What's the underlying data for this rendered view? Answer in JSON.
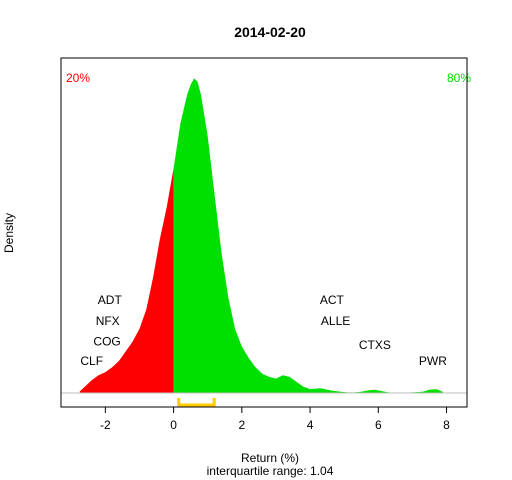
{
  "chart_data": {
    "type": "area",
    "title": "2014-02-20",
    "xlabel": "Return (%)",
    "ylabel": "Density",
    "subtitle": "interquartile range: 1.04",
    "xlim": [
      -3.3,
      8.6
    ],
    "ylim": [
      0,
      1.0
    ],
    "x_ticks": [
      -2,
      0,
      2,
      4,
      6,
      8
    ],
    "split_x": 0,
    "colors": {
      "below": "#ff0000",
      "above": "#00e000",
      "iqr": "#ffcc00",
      "baseline": "#bebebe"
    },
    "iqr": [
      0.15,
      1.19
    ],
    "left_percent": "20%",
    "right_percent": "80%",
    "density": {
      "x": [
        -2.75,
        -2.6,
        -2.4,
        -2.2,
        -2.0,
        -1.8,
        -1.6,
        -1.4,
        -1.2,
        -1.0,
        -0.8,
        -0.6,
        -0.4,
        -0.2,
        0.0,
        0.2,
        0.4,
        0.5,
        0.6,
        0.7,
        0.8,
        1.0,
        1.2,
        1.4,
        1.6,
        1.8,
        2.0,
        2.2,
        2.4,
        2.6,
        2.8,
        3.0,
        3.2,
        3.4,
        3.6,
        3.8,
        4.0,
        4.3,
        4.6,
        4.9,
        5.1,
        5.3,
        5.5,
        5.7,
        5.9,
        6.1,
        6.3,
        6.6,
        7.0,
        7.3,
        7.5,
        7.7,
        7.9
      ],
      "y": [
        0.005,
        0.02,
        0.04,
        0.055,
        0.065,
        0.08,
        0.1,
        0.13,
        0.16,
        0.2,
        0.26,
        0.36,
        0.48,
        0.58,
        0.7,
        0.84,
        0.93,
        0.96,
        0.98,
        0.97,
        0.93,
        0.8,
        0.62,
        0.44,
        0.3,
        0.2,
        0.145,
        0.11,
        0.08,
        0.06,
        0.05,
        0.045,
        0.055,
        0.05,
        0.035,
        0.02,
        0.012,
        0.015,
        0.008,
        0.004,
        0.002,
        0.002,
        0.004,
        0.008,
        0.01,
        0.006,
        0.002,
        0.001,
        0.002,
        0.004,
        0.01,
        0.012,
        0.003
      ]
    },
    "annotations": [
      {
        "label": "ADT",
        "x": -1.87,
        "y": 0.29
      },
      {
        "label": "NFX",
        "x": -1.93,
        "y": 0.225
      },
      {
        "label": "COG",
        "x": -1.95,
        "y": 0.16
      },
      {
        "label": "CLF",
        "x": -2.4,
        "y": 0.1
      },
      {
        "label": "ACT",
        "x": 4.64,
        "y": 0.29
      },
      {
        "label": "ALLE",
        "x": 4.75,
        "y": 0.225
      },
      {
        "label": "CTXS",
        "x": 5.9,
        "y": 0.15
      },
      {
        "label": "PWR",
        "x": 7.6,
        "y": 0.1
      }
    ]
  }
}
